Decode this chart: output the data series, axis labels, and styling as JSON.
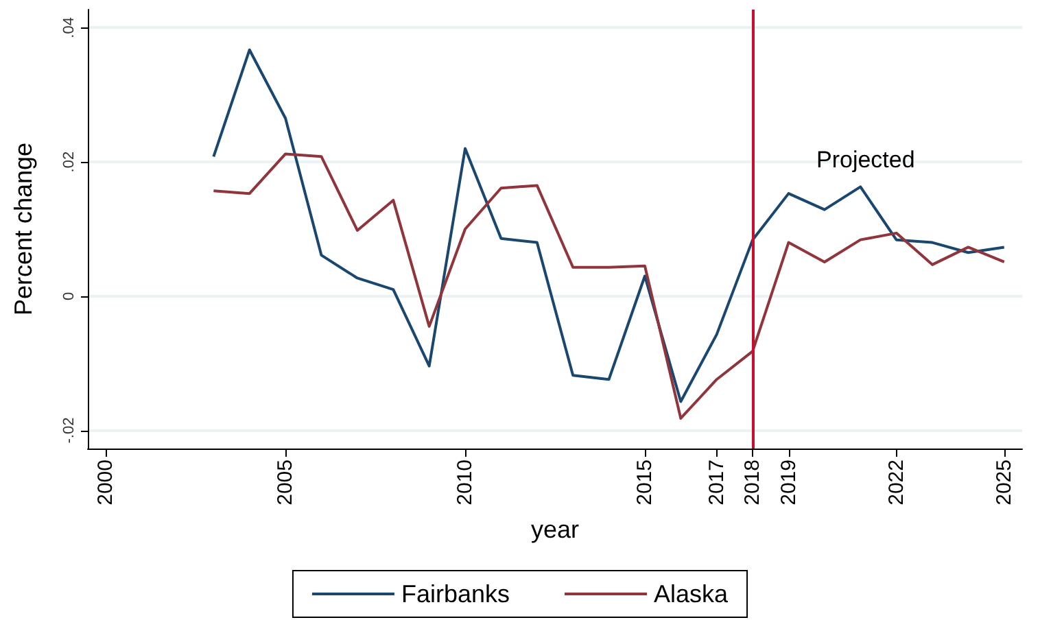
{
  "chart_data": {
    "type": "line",
    "xlabel": "year",
    "ylabel": "Percent change",
    "x": [
      2003,
      2004,
      2005,
      2006,
      2007,
      2008,
      2009,
      2010,
      2011,
      2012,
      2013,
      2014,
      2015,
      2016,
      2017,
      2018,
      2019,
      2020,
      2021,
      2022,
      2023,
      2024,
      2025
    ],
    "series": [
      {
        "name": "Fairbanks",
        "color": "#1a476f",
        "values": [
          0.0208,
          0.0367,
          0.0265,
          0.0061,
          0.0027,
          0.001,
          -0.0104,
          0.022,
          0.0086,
          0.008,
          -0.0118,
          -0.0124,
          0.003,
          -0.0157,
          -0.0057,
          0.0084,
          0.0153,
          0.0129,
          0.0163,
          0.0084,
          0.008,
          0.0065,
          0.0073
        ]
      },
      {
        "name": "Alaska",
        "color": "#90353b",
        "values": [
          0.0157,
          0.0153,
          0.0212,
          0.0208,
          0.0098,
          0.0143,
          -0.0045,
          0.01,
          0.0161,
          0.0165,
          0.0043,
          0.0043,
          0.0045,
          -0.0182,
          -0.0124,
          -0.0082,
          0.008,
          0.0051,
          0.0084,
          0.0094,
          0.0047,
          0.0073,
          0.0051
        ]
      }
    ],
    "xlim": [
      1999.5,
      2025.5
    ],
    "xticks": [
      2000,
      2005,
      2010,
      2015,
      2017,
      2018,
      2019,
      2022,
      2025
    ],
    "ylim": [
      -0.0227,
      0.0427
    ],
    "yticks": [
      {
        "value": -0.02,
        "label": "-.02"
      },
      {
        "value": 0,
        "label": "0"
      },
      {
        "value": 0.02,
        "label": ".02"
      },
      {
        "value": 0.04,
        "label": ".04"
      }
    ],
    "ref_lines": [
      {
        "axis": "x",
        "value": 2018,
        "color": "#c8102e"
      }
    ],
    "annotations": [
      "Projected"
    ],
    "grid": "y",
    "legend": "bottom",
    "marker": "none",
    "line_style": "solid"
  }
}
